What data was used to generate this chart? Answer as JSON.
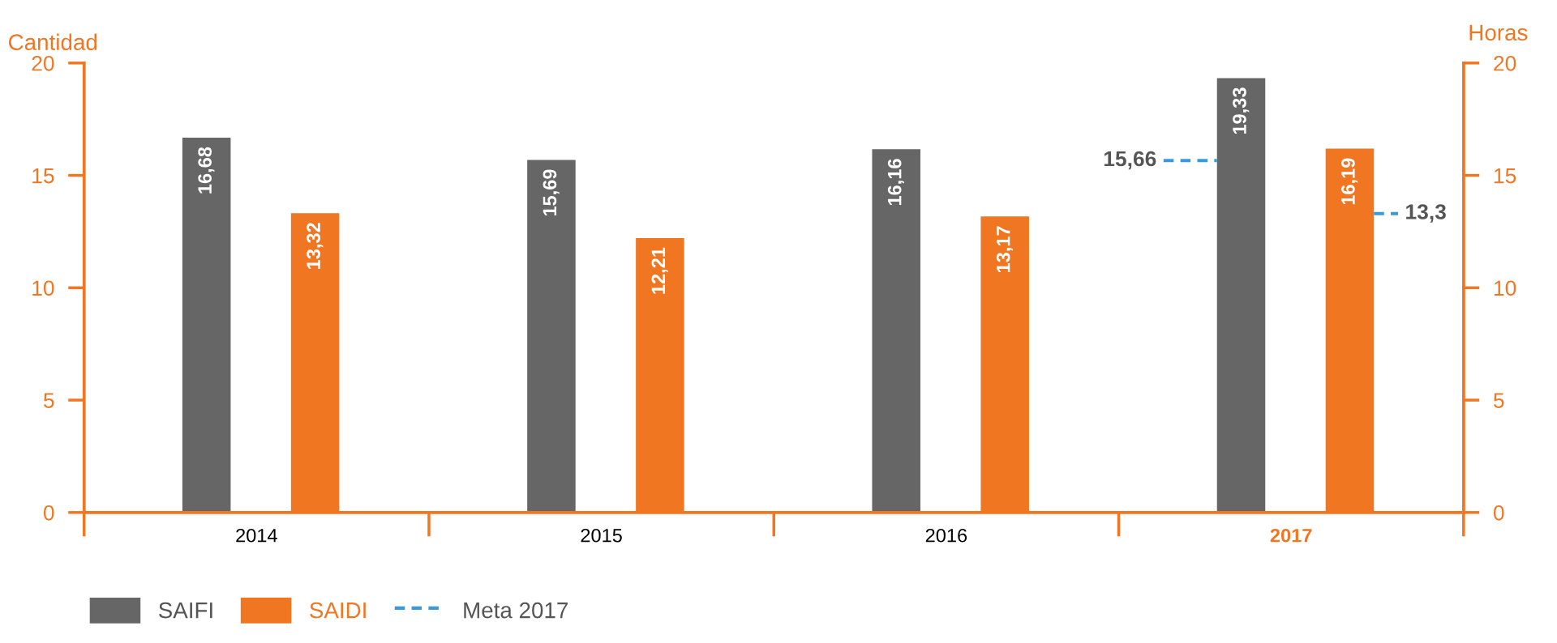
{
  "chart_data": {
    "type": "bar",
    "ylabel": "Cantidad",
    "y2label": "Horas",
    "categories": [
      "2014",
      "2015",
      "2016",
      "2017"
    ],
    "series": [
      {
        "name": "SAIFI",
        "color": "#666666",
        "values": [
          16.68,
          15.69,
          16.16,
          19.33
        ],
        "value_labels": [
          "16,68",
          "15,69",
          "16,16",
          "19,33"
        ]
      },
      {
        "name": "SAIDI",
        "color": "#f07622",
        "axis": "y2",
        "values": [
          13.32,
          12.21,
          13.17,
          16.19
        ],
        "value_labels": [
          "13,32",
          "12,21",
          "13,17",
          "16,19"
        ]
      }
    ],
    "ylim": [
      0,
      20
    ],
    "yticks": [
      0,
      5,
      10,
      15,
      20
    ],
    "y2lim": [
      0,
      20
    ],
    "y2ticks": [
      0,
      5,
      10,
      15,
      20
    ],
    "ref_lines": [
      {
        "axis": "y",
        "value": 15.66,
        "label": "15,66",
        "color": "#3a9ad9",
        "line_style": "dashed"
      },
      {
        "axis": "y2",
        "value": 13.3,
        "label": "13,3",
        "color": "#3a9ad9",
        "line_style": "dashed"
      }
    ],
    "annotations": [
      "Meta 2017"
    ],
    "legend": "bottom left",
    "grid": false
  }
}
